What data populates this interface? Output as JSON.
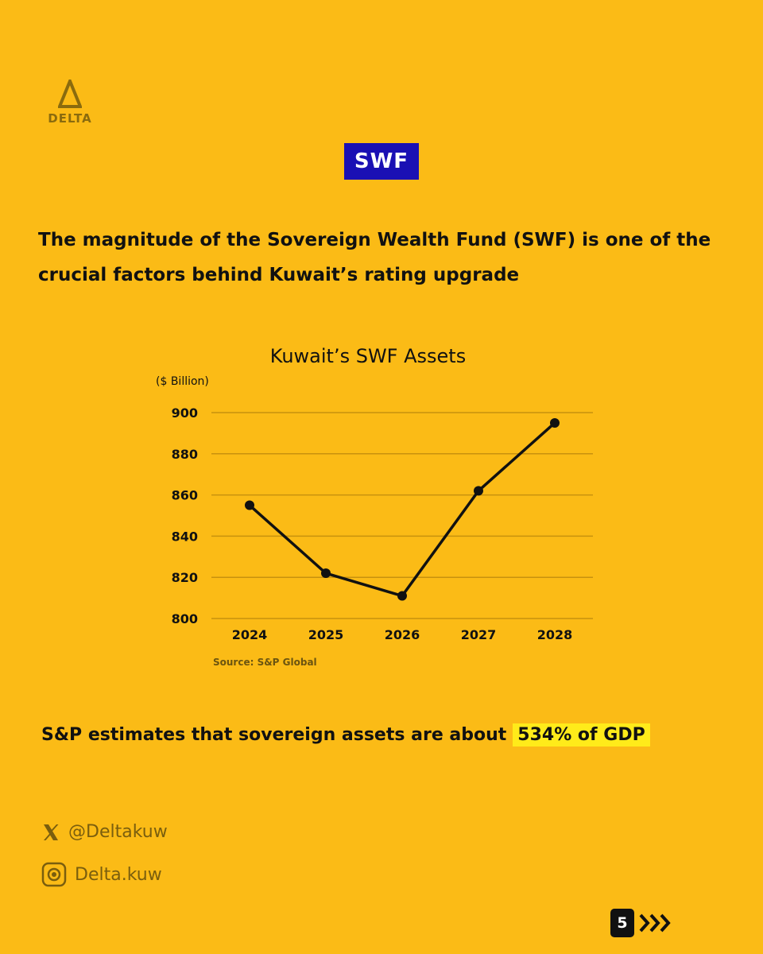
{
  "brand": {
    "name": "DELTA"
  },
  "tag": "SWF",
  "headline": "The magnitude of the Sovereign Wealth Fund (SWF) is one of the crucial factors behind Kuwait’s rating upgrade",
  "chart_data": {
    "type": "line",
    "title": "Kuwait’s SWF Assets",
    "ylabel": "($ Billion)",
    "xlabel": "",
    "categories": [
      "2024",
      "2025",
      "2026",
      "2027",
      "2028"
    ],
    "series": [
      {
        "name": "SWF Assets",
        "values": [
          855,
          822,
          811,
          862,
          895
        ]
      }
    ],
    "ylim": [
      800,
      900
    ],
    "yticks": [
      800,
      820,
      840,
      860,
      880,
      900
    ],
    "grid": true,
    "source": "Source: S&P Global"
  },
  "note": {
    "text": "S&P estimates that sovereign assets are about",
    "highlight": "534% of GDP"
  },
  "social": {
    "x_handle": "@Deltakuw",
    "instagram_handle": "Delta.kuw"
  },
  "page": {
    "number": "5"
  },
  "colors": {
    "background": "#FBBB16",
    "tag_bg": "#1A10B4",
    "highlight": "#FFEB1A"
  }
}
